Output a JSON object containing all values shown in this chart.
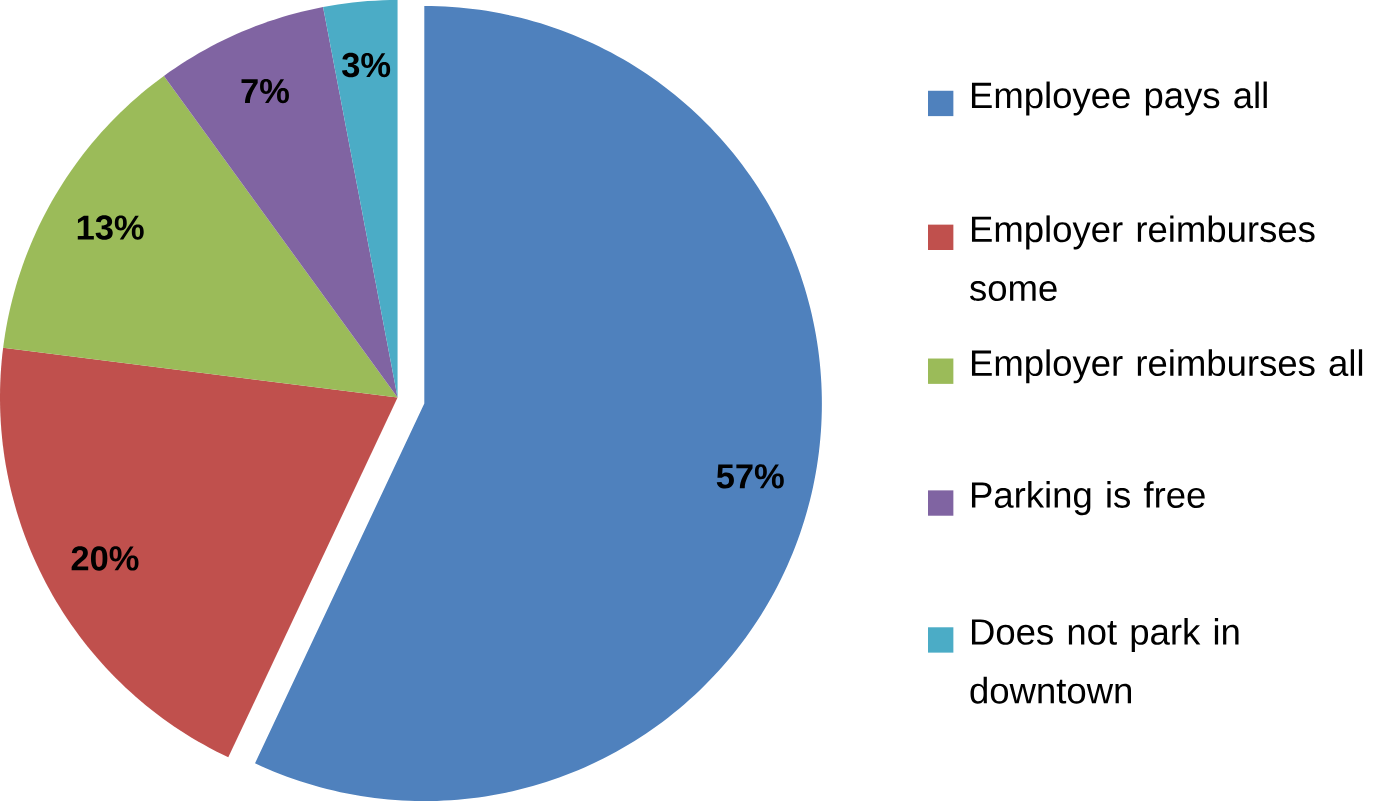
{
  "chart_data": {
    "type": "pie",
    "categories": [
      "Employee pays all",
      "Employer reimburses some",
      "Employer reimburses all",
      "Parking is free",
      "Does not park in downtown"
    ],
    "values": [
      57,
      20,
      13,
      7,
      3
    ],
    "colors": [
      "#4f81bd",
      "#c0504d",
      "#9bbb59",
      "#8064a2",
      "#4bacc6"
    ],
    "value_labels": [
      "57%",
      "20%",
      "13%",
      "7%",
      "3%"
    ],
    "legend": "right"
  }
}
